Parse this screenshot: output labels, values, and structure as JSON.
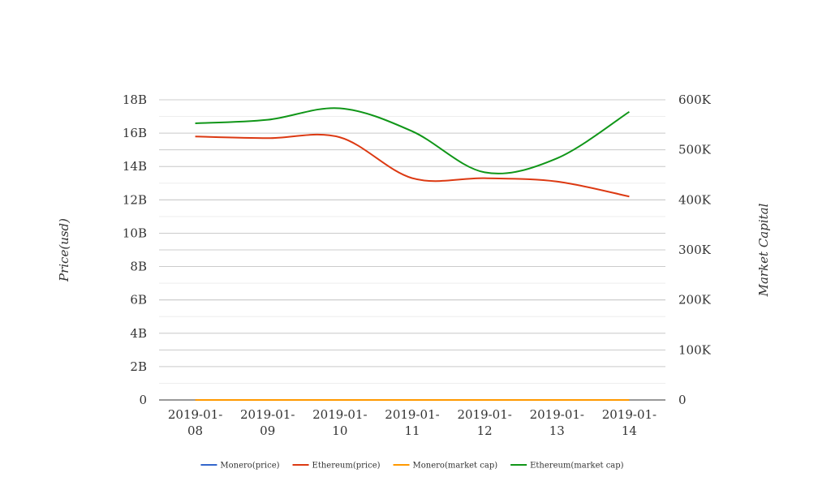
{
  "chart_data": {
    "type": "line",
    "x": [
      "2019-01-08",
      "2019-01-09",
      "2019-01-10",
      "2019-01-11",
      "2019-01-12",
      "2019-01-13",
      "2019-01-14"
    ],
    "x_tick_labels": [
      [
        "2019-01-",
        "08"
      ],
      [
        "2019-01-",
        "09"
      ],
      [
        "2019-01-",
        "10"
      ],
      [
        "2019-01-",
        "11"
      ],
      [
        "2019-01-",
        "12"
      ],
      [
        "2019-01-",
        "13"
      ],
      [
        "2019-01-",
        "14"
      ]
    ],
    "ylabel": "Price(usd)",
    "y2label": "Market Capital",
    "ylim": [
      0,
      18000000000
    ],
    "y_ticks": [
      0,
      2000000000,
      4000000000,
      6000000000,
      8000000000,
      10000000000,
      12000000000,
      14000000000,
      16000000000,
      18000000000
    ],
    "y_tick_labels": [
      "0",
      "2B",
      "4B",
      "6B",
      "8B",
      "10B",
      "12B",
      "14B",
      "16B",
      "18B"
    ],
    "y2lim": [
      0,
      600000
    ],
    "y2_ticks": [
      0,
      100000,
      200000,
      300000,
      400000,
      500000,
      600000
    ],
    "y2_tick_labels": [
      "0",
      "100K",
      "200K",
      "300K",
      "400K",
      "500K",
      "600K"
    ],
    "grid": true,
    "legend_position": "bottom",
    "series": [
      {
        "name": "Monero(price)",
        "axis": "left",
        "color": "#3366cc",
        "values": [
          0,
          0,
          0,
          0,
          0,
          0,
          0
        ]
      },
      {
        "name": "Ethereum(price)",
        "axis": "left",
        "color": "#dc3912",
        "values": [
          15800000000,
          15700000000,
          15750000000,
          13300000000,
          13300000000,
          13100000000,
          12200000000
        ]
      },
      {
        "name": "Monero(market cap)",
        "axis": "right",
        "color": "#ff9900",
        "values": [
          0,
          0,
          0,
          0,
          0,
          0,
          0
        ]
      },
      {
        "name": "Ethereum(market cap)",
        "axis": "right",
        "color": "#109618",
        "values": [
          553000,
          560000,
          583000,
          537000,
          455000,
          483000,
          576000
        ]
      }
    ]
  }
}
